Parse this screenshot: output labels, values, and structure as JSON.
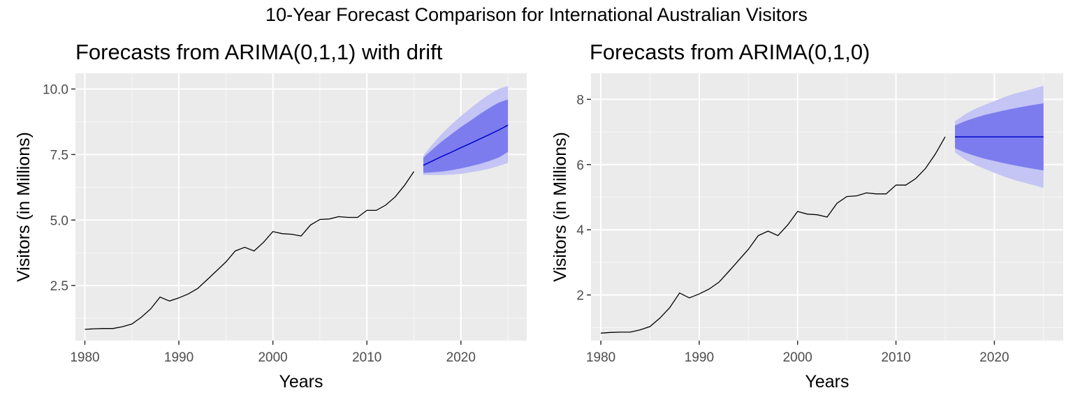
{
  "title": "10-Year Forecast Comparison for International Australian Visitors",
  "chart_data": [
    {
      "type": "line",
      "title": "Forecasts from ARIMA(0,1,1) with drift",
      "xlabel": "Years",
      "ylabel": "Visitors (in Millions)",
      "xlim": [
        1979,
        2027
      ],
      "ylim": [
        0.4,
        10.6
      ],
      "xticks": [
        1980,
        1990,
        2000,
        2010,
        2020
      ],
      "yticks": [
        2.5,
        5.0,
        7.5,
        10.0
      ],
      "ytick_labels": [
        "2.5",
        "5.0",
        "7.5",
        "10.0"
      ],
      "grid": true,
      "colors": {
        "history": "#000000",
        "forecast": "#0000cc",
        "band80": "#7c7cee",
        "band95": "#c4c4f5",
        "panel_bg": "#ebebeb"
      },
      "history": {
        "x": [
          1980,
          1981,
          1982,
          1983,
          1984,
          1985,
          1986,
          1987,
          1988,
          1989,
          1990,
          1991,
          1992,
          1993,
          1994,
          1995,
          1996,
          1997,
          1998,
          1999,
          2000,
          2001,
          2002,
          2003,
          2004,
          2005,
          2006,
          2007,
          2008,
          2009,
          2010,
          2011,
          2012,
          2013,
          2014,
          2015
        ],
        "y": [
          0.83,
          0.85,
          0.86,
          0.86,
          0.93,
          1.03,
          1.29,
          1.61,
          2.06,
          1.91,
          2.03,
          2.18,
          2.39,
          2.72,
          3.06,
          3.4,
          3.82,
          3.96,
          3.82,
          4.15,
          4.56,
          4.48,
          4.46,
          4.39,
          4.81,
          5.02,
          5.04,
          5.13,
          5.1,
          5.1,
          5.37,
          5.37,
          5.57,
          5.88,
          6.32,
          6.85
        ]
      },
      "forecast": {
        "x": [
          2016,
          2017,
          2018,
          2019,
          2020,
          2021,
          2022,
          2023,
          2024,
          2025
        ],
        "mean": [
          7.09,
          7.26,
          7.43,
          7.59,
          7.76,
          7.92,
          8.09,
          8.26,
          8.43,
          8.62
        ],
        "lo80": [
          6.8,
          6.82,
          6.85,
          6.9,
          6.97,
          7.05,
          7.14,
          7.25,
          7.38,
          7.6
        ],
        "hi80": [
          7.38,
          7.7,
          8.01,
          8.28,
          8.55,
          8.79,
          9.04,
          9.27,
          9.48,
          9.6
        ],
        "lo95": [
          6.72,
          6.72,
          6.72,
          6.73,
          6.76,
          6.82,
          6.88,
          6.96,
          7.06,
          7.18
        ],
        "hi95": [
          7.46,
          7.9,
          8.3,
          8.65,
          8.97,
          9.26,
          9.54,
          9.79,
          10.0,
          10.12
        ]
      }
    },
    {
      "type": "line",
      "title": "Forecasts from ARIMA(0,1,0)",
      "xlabel": "Years",
      "ylabel": "Visitors (in Millions)",
      "xlim": [
        1979,
        2027
      ],
      "ylim": [
        0.6,
        8.8
      ],
      "xticks": [
        1980,
        1990,
        2000,
        2010,
        2020
      ],
      "yticks": [
        2,
        4,
        6,
        8
      ],
      "ytick_labels": [
        "2",
        "4",
        "6",
        "8"
      ],
      "grid": true,
      "colors": {
        "history": "#000000",
        "forecast": "#0000cc",
        "band80": "#7c7cee",
        "band95": "#c4c4f5",
        "panel_bg": "#ebebeb"
      },
      "history": {
        "x": [
          1980,
          1981,
          1982,
          1983,
          1984,
          1985,
          1986,
          1987,
          1988,
          1989,
          1990,
          1991,
          1992,
          1993,
          1994,
          1995,
          1996,
          1997,
          1998,
          1999,
          2000,
          2001,
          2002,
          2003,
          2004,
          2005,
          2006,
          2007,
          2008,
          2009,
          2010,
          2011,
          2012,
          2013,
          2014,
          2015
        ],
        "y": [
          0.83,
          0.85,
          0.86,
          0.86,
          0.93,
          1.03,
          1.29,
          1.61,
          2.06,
          1.91,
          2.03,
          2.18,
          2.39,
          2.72,
          3.06,
          3.4,
          3.82,
          3.96,
          3.82,
          4.15,
          4.56,
          4.48,
          4.46,
          4.39,
          4.81,
          5.02,
          5.04,
          5.13,
          5.1,
          5.1,
          5.37,
          5.37,
          5.57,
          5.88,
          6.32,
          6.85
        ]
      },
      "forecast": {
        "x": [
          2016,
          2017,
          2018,
          2019,
          2020,
          2021,
          2022,
          2023,
          2024,
          2025
        ],
        "mean": [
          6.85,
          6.85,
          6.85,
          6.85,
          6.85,
          6.85,
          6.85,
          6.85,
          6.85,
          6.85
        ],
        "lo80": [
          6.5,
          6.37,
          6.27,
          6.18,
          6.11,
          6.04,
          5.98,
          5.92,
          5.87,
          5.82
        ],
        "hi80": [
          7.2,
          7.33,
          7.43,
          7.52,
          7.59,
          7.66,
          7.72,
          7.78,
          7.83,
          7.88
        ],
        "lo95": [
          6.37,
          6.16,
          6.0,
          5.87,
          5.75,
          5.63,
          5.53,
          5.45,
          5.37,
          5.28
        ],
        "hi95": [
          7.33,
          7.54,
          7.7,
          7.83,
          7.95,
          8.07,
          8.17,
          8.25,
          8.33,
          8.42
        ]
      }
    }
  ]
}
